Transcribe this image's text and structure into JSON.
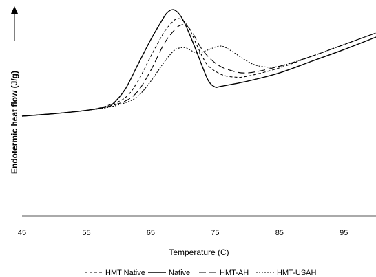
{
  "chart_data": {
    "type": "line",
    "xlabel": "Temperature (C)",
    "ylabel": "Endotermic heat flow (J/g)",
    "x_ticks": [
      "45",
      "55",
      "65",
      "75",
      "85",
      "95"
    ],
    "xlim": [
      45,
      100
    ],
    "grid": false,
    "legend_position": "bottom",
    "y_axis_arrow": true,
    "series": [
      {
        "name": "HMT Native",
        "dash": "dashed-short",
        "points": [
          [
            45,
            0.0
          ],
          [
            50,
            0.03
          ],
          [
            55,
            0.07
          ],
          [
            58,
            0.12
          ],
          [
            61,
            0.22
          ],
          [
            63,
            0.42
          ],
          [
            65,
            0.72
          ],
          [
            67,
            1.0
          ],
          [
            68,
            1.1
          ],
          [
            69,
            1.17
          ],
          [
            70,
            1.15
          ],
          [
            71,
            1.05
          ],
          [
            72,
            0.88
          ],
          [
            73,
            0.72
          ],
          [
            74,
            0.6
          ],
          [
            76,
            0.5
          ],
          [
            78,
            0.47
          ],
          [
            80,
            0.48
          ],
          [
            85,
            0.58
          ],
          [
            90,
            0.72
          ],
          [
            95,
            0.86
          ],
          [
            100,
            1.0
          ]
        ]
      },
      {
        "name": "Native",
        "dash": "solid",
        "points": [
          [
            45,
            0.0
          ],
          [
            50,
            0.03
          ],
          [
            55,
            0.07
          ],
          [
            58,
            0.11
          ],
          [
            59,
            0.14
          ],
          [
            61,
            0.32
          ],
          [
            63,
            0.62
          ],
          [
            65,
            0.92
          ],
          [
            66.5,
            1.12
          ],
          [
            67.5,
            1.24
          ],
          [
            68.5,
            1.28
          ],
          [
            69.5,
            1.22
          ],
          [
            70.5,
            1.08
          ],
          [
            72,
            0.8
          ],
          [
            73,
            0.6
          ],
          [
            74,
            0.42
          ],
          [
            75,
            0.35
          ],
          [
            76,
            0.36
          ],
          [
            80,
            0.42
          ],
          [
            85,
            0.52
          ],
          [
            90,
            0.66
          ],
          [
            95,
            0.8
          ],
          [
            100,
            0.95
          ]
        ]
      },
      {
        "name": "HMT-AH",
        "dash": "dashed-long",
        "points": [
          [
            45,
            0.0
          ],
          [
            50,
            0.03
          ],
          [
            55,
            0.07
          ],
          [
            58,
            0.11
          ],
          [
            61,
            0.18
          ],
          [
            63,
            0.3
          ],
          [
            65,
            0.55
          ],
          [
            67,
            0.86
          ],
          [
            68.5,
            1.02
          ],
          [
            69.5,
            1.09
          ],
          [
            70.5,
            1.09
          ],
          [
            71.5,
            1.0
          ],
          [
            73,
            0.8
          ],
          [
            75,
            0.64
          ],
          [
            77,
            0.56
          ],
          [
            80,
            0.52
          ],
          [
            85,
            0.6
          ],
          [
            90,
            0.72
          ],
          [
            95,
            0.86
          ],
          [
            100,
            1.0
          ]
        ]
      },
      {
        "name": "HMT-USAH",
        "dash": "dotted",
        "points": [
          [
            45,
            0.0
          ],
          [
            50,
            0.03
          ],
          [
            55,
            0.07
          ],
          [
            58,
            0.1
          ],
          [
            61,
            0.16
          ],
          [
            63,
            0.24
          ],
          [
            65,
            0.42
          ],
          [
            67,
            0.64
          ],
          [
            68.5,
            0.78
          ],
          [
            69.5,
            0.82
          ],
          [
            70.5,
            0.82
          ],
          [
            71.5,
            0.78
          ],
          [
            72.5,
            0.76
          ],
          [
            74,
            0.8
          ],
          [
            75.5,
            0.84
          ],
          [
            76.5,
            0.83
          ],
          [
            78,
            0.76
          ],
          [
            80,
            0.66
          ],
          [
            82,
            0.6
          ],
          [
            85,
            0.6
          ],
          [
            90,
            0.72
          ],
          [
            95,
            0.86
          ],
          [
            100,
            1.0
          ]
        ]
      }
    ]
  }
}
